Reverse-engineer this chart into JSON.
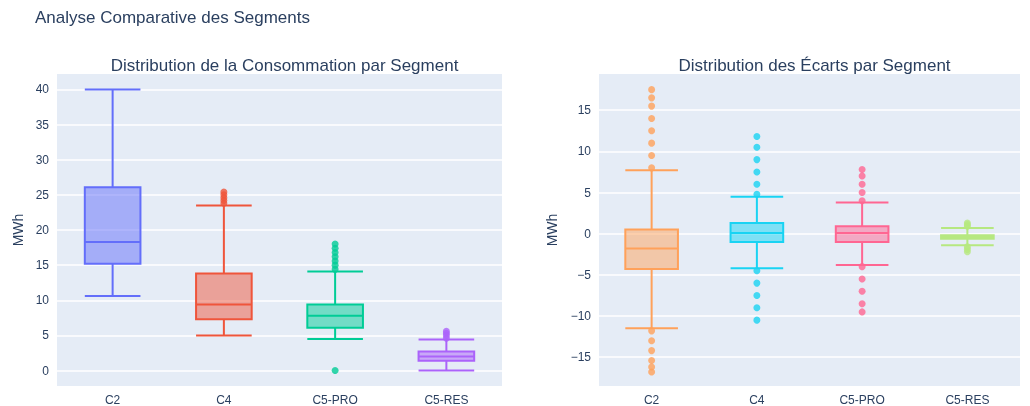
{
  "chart_data": [
    {
      "type": "box",
      "title": "Distribution de la Consommation par Segment",
      "ylabel": "MWh",
      "annotations": [
        "Analyse Comparative des Segments"
      ],
      "categories": [
        "C2",
        "C4",
        "C5-PRO",
        "C5-RES"
      ],
      "colors": [
        "#636efa",
        "#ef553b",
        "#00cc96",
        "#ab63fa"
      ],
      "boxes": [
        {
          "low": 10.6,
          "q1": 15.2,
          "median": 18.3,
          "q3": 26.1,
          "high": 40
        },
        {
          "low": 5.0,
          "q1": 7.3,
          "median": 9.4,
          "q3": 13.8,
          "high": 23.5,
          "outliers": [
            23.8,
            24.2,
            24.6,
            25.0,
            25.4
          ]
        },
        {
          "low": 4.5,
          "q1": 6.1,
          "median": 7.8,
          "q3": 9.4,
          "high": 14.1,
          "outliers": [
            0,
            14.4,
            15.0,
            15.6,
            16.2,
            16.8,
            17.4,
            18.0
          ]
        },
        {
          "low": 0,
          "q1": 1.4,
          "median": 2.0,
          "q3": 2.7,
          "high": 4.4,
          "outliers": [
            4.6,
            5.0,
            5.3,
            5.6
          ]
        }
      ],
      "ylim": [
        -2.2,
        42.2
      ],
      "yticks": [
        0,
        5,
        10,
        15,
        20,
        25,
        30,
        35,
        40
      ],
      "grid": "y"
    },
    {
      "type": "box",
      "title": "Distribution des Écarts par Segment",
      "ylabel": "MWh",
      "categories": [
        "C2",
        "C4",
        "C5-PRO",
        "C5-RES"
      ],
      "colors": [
        "#ffa15a",
        "#19d3f3",
        "#ff6692",
        "#b6e880"
      ],
      "boxes": [
        {
          "low": -11.5,
          "q1": -4.3,
          "median": -1.8,
          "q3": 0.5,
          "high": 7.7,
          "outliers": [
            8.0,
            9.5,
            11.0,
            12.5,
            14.0,
            15.5,
            16.5,
            17.5,
            -11.8,
            -13.0,
            -14.2,
            -15.4,
            -16.2,
            -16.8
          ]
        },
        {
          "low": -4.2,
          "q1": -1.0,
          "median": 0.1,
          "q3": 1.3,
          "high": 4.5,
          "outliers": [
            4.8,
            6.0,
            7.5,
            9.0,
            10.5,
            11.8,
            -4.5,
            -6.0,
            -7.5,
            -9.0,
            -10.5
          ]
        },
        {
          "low": -3.8,
          "q1": -1.0,
          "median": 0.1,
          "q3": 0.9,
          "high": 3.8,
          "outliers": [
            4.0,
            5.0,
            6.0,
            7.0,
            7.8,
            -4.0,
            -5.5,
            -7.0,
            -8.5,
            -9.5
          ]
        },
        {
          "low": -1.4,
          "q1": -0.6,
          "median": -0.4,
          "q3": -0.2,
          "high": 0.7,
          "outliers": [
            0.9,
            1.1,
            1.3,
            -1.6,
            -1.9,
            -2.2
          ]
        }
      ],
      "ylim": [
        -18.5,
        19.4
      ],
      "yticks": [
        -15,
        -10,
        -5,
        0,
        5,
        10,
        15
      ],
      "grid": "y"
    }
  ]
}
